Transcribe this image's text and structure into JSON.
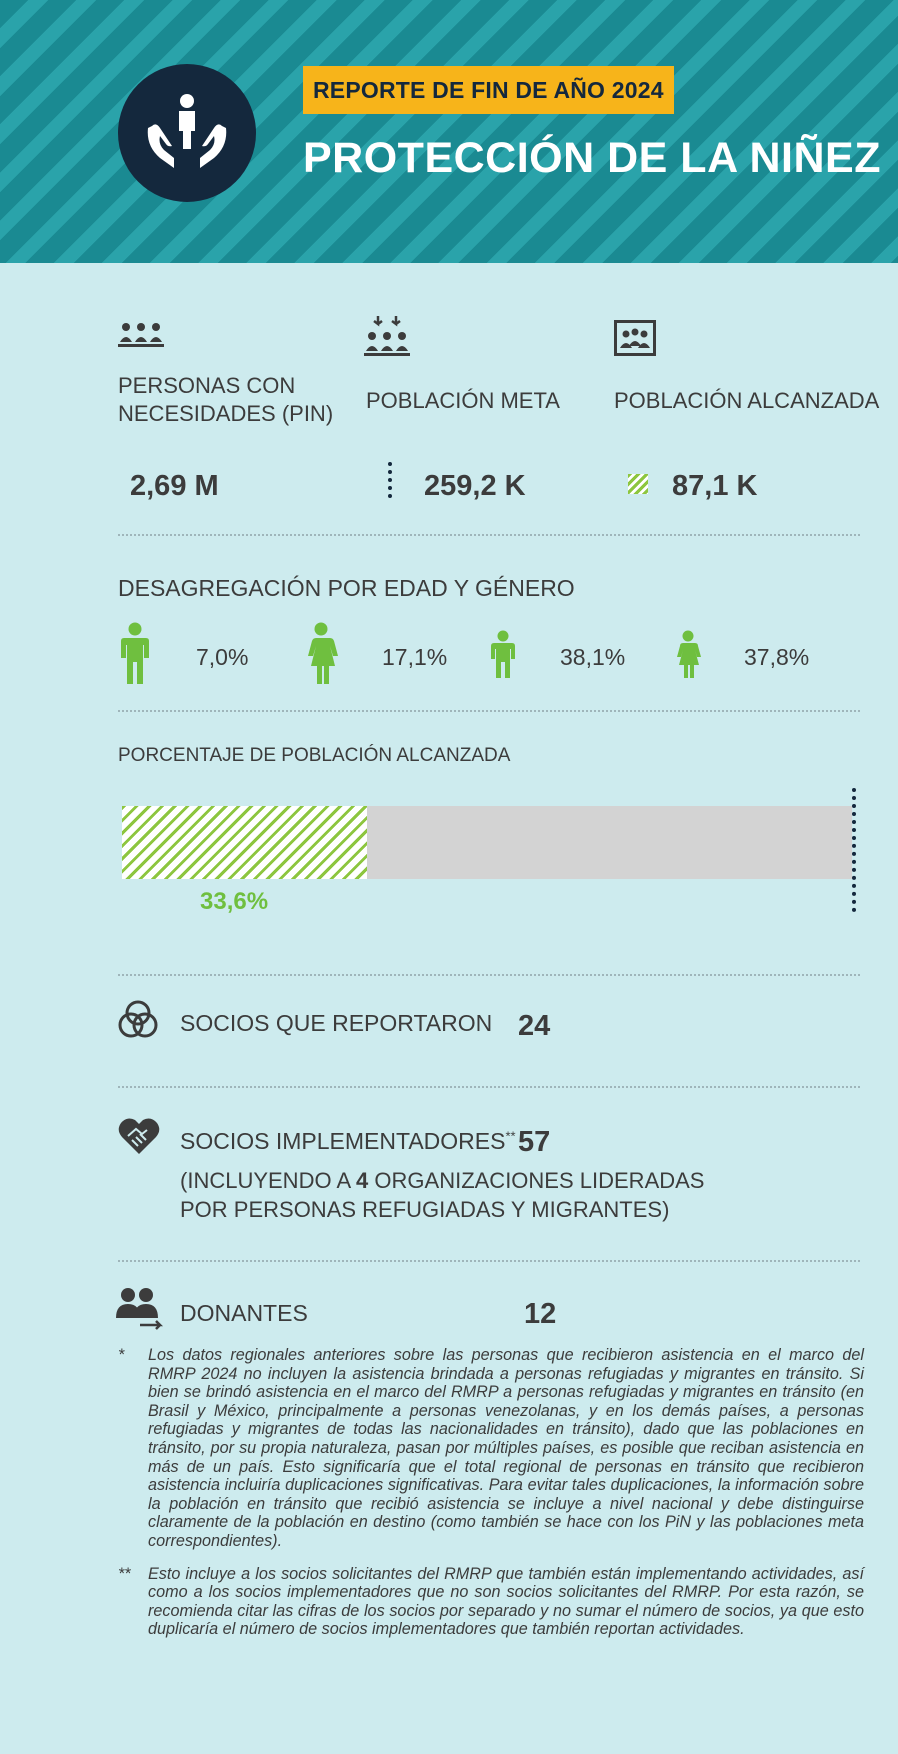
{
  "header": {
    "badge": "REPORTE DE FIN DE AÑO 2024",
    "title": "PROTECCIÓN DE LA NIÑEZ",
    "logo_icon": "hands-protecting-child-icon",
    "colors": {
      "teal": "#1a8a92",
      "navy": "#14283d",
      "yellow": "#f7b41a"
    }
  },
  "stats": {
    "pin": {
      "label_line1": "PERSONAS CON",
      "label_line2": "NECESIDADES (PIN)",
      "value": "2,69 M",
      "icon": "people-group-icon"
    },
    "meta": {
      "label": "POBLACIÓN META",
      "value": "259,2 K",
      "icon": "target-population-icon"
    },
    "alcanzada": {
      "label": "POBLACIÓN ALCANZADA",
      "value": "87,1 K",
      "icon": "reached-population-icon"
    }
  },
  "desagregacion": {
    "title": "DESAGREGACIÓN POR EDAD Y GÉNERO",
    "items": [
      {
        "icon": "man-icon",
        "value": "7,0%"
      },
      {
        "icon": "woman-icon",
        "value": "17,1%"
      },
      {
        "icon": "boy-icon",
        "value": "38,1%"
      },
      {
        "icon": "girl-icon",
        "value": "37,8%"
      }
    ]
  },
  "porcentaje": {
    "title": "PORCENTAJE DE POBLACIÓN ALCANZADA",
    "value_label": "33,6%",
    "fraction": 0.336,
    "color": "#6fbf3f"
  },
  "socios_reportaron": {
    "label": "SOCIOS QUE REPORTARON",
    "value": "24",
    "icon": "venn-circles-icon"
  },
  "socios_implementadores": {
    "label": "SOCIOS IMPLEMENTADORES",
    "suffix": "**",
    "value": "57",
    "note_pre": "(INCLUYENDO A ",
    "note_num": "4",
    "note_post": " ORGANIZACIONES LIDERADAS",
    "note_line2": "POR PERSONAS REFUGIADAS Y MIGRANTES)",
    "icon": "heart-handshake-icon"
  },
  "donantes": {
    "label": "DONANTES",
    "value": "12",
    "icon": "donors-icon"
  },
  "footnotes": [
    {
      "mark": "*",
      "text": "Los datos regionales anteriores sobre las personas que recibieron asistencia en el marco del RMRP 2024 no incluyen la asistencia brindada a personas refugiadas y migrantes en tránsito. Si bien se brindó asistencia en el marco del RMRP a personas refugiadas y migrantes en tránsito (en Brasil y México, principalmente a personas venezolanas, y en los demás países, a personas refugiadas y migrantes de todas las nacionalidades en tránsito), dado que las poblaciones en tránsito, por su propia naturaleza, pasan por múltiples países, es posible que reciban asistencia en más de un país. Esto significaría que el total regional de personas en tránsito que recibieron asistencia incluiría duplicaciones significativas. Para evitar tales duplicaciones, la información sobre la población en tránsito que recibió asistencia se incluye a nivel nacional y debe distinguirse claramente de la población en destino (como también se hace con los PiN y las poblaciones meta correspondientes)."
    },
    {
      "mark": "**",
      "text": "Esto incluye a los socios solicitantes del RMRP que también están implementando actividades, así como a los socios implementadores que no son socios solicitantes del RMRP. Por esta razón, se recomienda citar las cifras de los socios por separado y no sumar el número de socios, ya que esto duplicaría el número de socios implementadores que también reportan actividades."
    }
  ]
}
